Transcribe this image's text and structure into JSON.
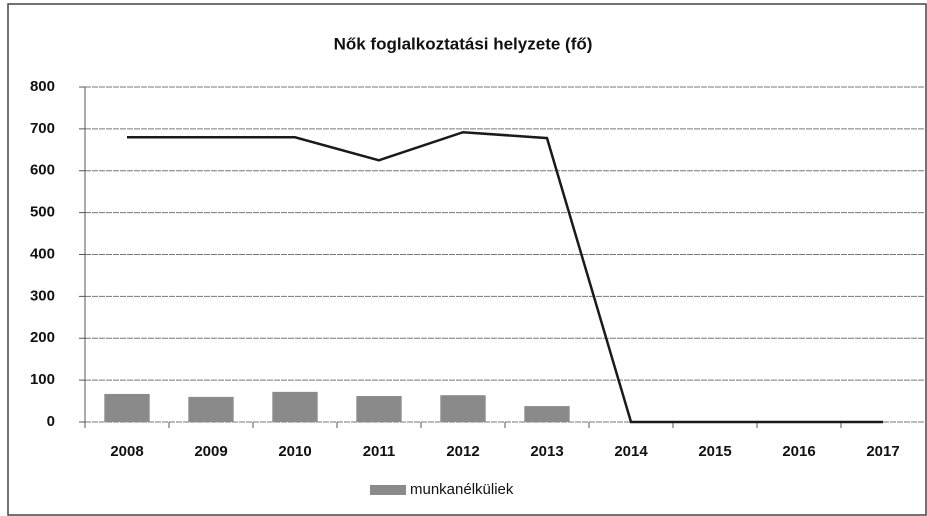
{
  "chart_data": {
    "type": "bar",
    "title": "Nők foglalkoztatási helyzete (fő)",
    "categories": [
      "2008",
      "2009",
      "2010",
      "2011",
      "2012",
      "2013",
      "2014",
      "2015",
      "2016",
      "2017"
    ],
    "series": [
      {
        "name": "munkanélküliek",
        "type": "bar",
        "color": "#8a8a8a",
        "values": [
          67,
          60,
          72,
          62,
          64,
          38,
          0,
          0,
          0,
          0
        ]
      },
      {
        "type": "line",
        "color": "#1a1a1a",
        "values": [
          680,
          680,
          680,
          625,
          692,
          678,
          0,
          0,
          0,
          0
        ]
      }
    ],
    "ylim": [
      0,
      800
    ],
    "yticks": [
      0,
      100,
      200,
      300,
      400,
      500,
      600,
      700,
      800
    ],
    "grid": true,
    "legend": "bottom"
  }
}
